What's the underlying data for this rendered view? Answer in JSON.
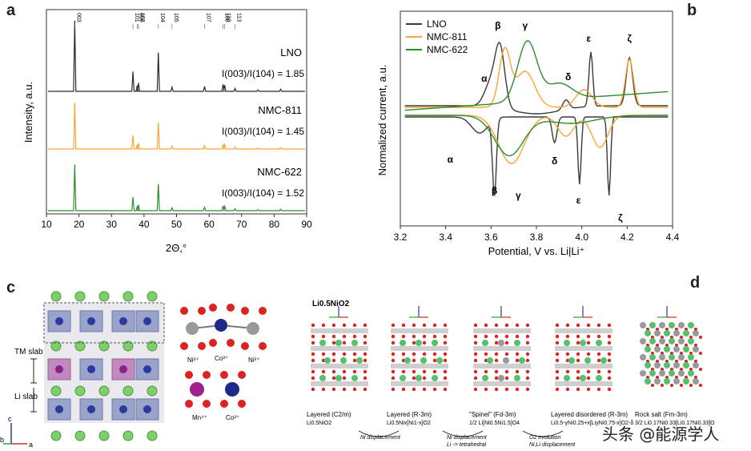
{
  "panels": {
    "a": "a",
    "b": "b",
    "c": "c",
    "d": "d"
  },
  "chart_a": {
    "type": "line",
    "xlabel": "2Θ,°",
    "ylabel": "Intensity, a.u.",
    "xlim": [
      10,
      90
    ],
    "xticks": [
      10,
      20,
      30,
      40,
      50,
      60,
      70,
      80,
      90
    ],
    "hkl": [
      {
        "label": "003",
        "x": 18.7
      },
      {
        "label": "101",
        "x": 36.6
      },
      {
        "label": "006",
        "x": 37.9
      },
      {
        "label": "102",
        "x": 38.3
      },
      {
        "label": "104",
        "x": 44.4
      },
      {
        "label": "105",
        "x": 48.6
      },
      {
        "label": "107",
        "x": 58.6
      },
      {
        "label": "108",
        "x": 64.3
      },
      {
        "label": "110",
        "x": 64.8
      },
      {
        "label": "113",
        "x": 68.0
      }
    ],
    "peaks": [
      {
        "x": 18.7,
        "h": 1.0
      },
      {
        "x": 36.6,
        "h": 0.28
      },
      {
        "x": 37.9,
        "h": 0.08
      },
      {
        "x": 38.3,
        "h": 0.12
      },
      {
        "x": 44.4,
        "h": 0.55
      },
      {
        "x": 48.6,
        "h": 0.06
      },
      {
        "x": 58.6,
        "h": 0.07
      },
      {
        "x": 64.3,
        "h": 0.1
      },
      {
        "x": 64.8,
        "h": 0.09
      },
      {
        "x": 68.0,
        "h": 0.04
      },
      {
        "x": 75.0,
        "h": 0.02
      },
      {
        "x": 82.0,
        "h": 0.03
      }
    ],
    "series": [
      {
        "name": "LNO",
        "ratio_label": "I(003)/I(104) = 1.85",
        "color": "#2b2b2b",
        "scale": 0.9
      },
      {
        "name": "NMC-811",
        "ratio_label": "I(003)/I(104) = 1.45",
        "color": "#f7a634",
        "scale": 0.8
      },
      {
        "name": "NMC-622",
        "ratio_label": "I(003)/I(104) = 1.52",
        "color": "#2e8b2e",
        "scale": 0.8
      }
    ]
  },
  "chart_b": {
    "type": "line",
    "xlabel": "Potential, V vs. Li|Li⁺",
    "ylabel": "Normalized current, a.u.",
    "xlim": [
      3.2,
      4.4
    ],
    "xticks": [
      "3.2",
      "3.4",
      "3.6",
      "3.8",
      "4.0",
      "4.2",
      "4.4"
    ],
    "legend": [
      "LNO",
      "NMC-811",
      "NMC-622"
    ],
    "legend_position": "top-left",
    "colors": {
      "LNO": "#3a3a3a",
      "NMC-811": "#f7a634",
      "NMC-622": "#2e8b2e"
    },
    "peak_labels": [
      "α",
      "β",
      "γ",
      "δ",
      "ε",
      "ζ",
      "α",
      "β",
      "γ",
      "δ",
      "ε",
      "ζ"
    ]
  },
  "panel_c": {
    "labels": [
      "TM slab",
      "Li slab"
    ],
    "ion_labels": [
      "Ni³⁺",
      "Co³⁺",
      "Ni³⁺",
      "Mn⁴⁺",
      "Co³⁺"
    ],
    "axes": [
      "c",
      "b",
      "a"
    ]
  },
  "panel_d": {
    "title": "Li0.5NiO2",
    "structures": [
      {
        "name": "Layered (C2/m)",
        "formula": "Li0.5NiO2"
      },
      {
        "name": "Layered (R-3m)",
        "formula": "Li0.5Nix[Ni1-x]O2"
      },
      {
        "name": "\"Spinel\" (Fd-3m)",
        "formula": "1/2 Li[Ni0.5Ni1.5]O4"
      },
      {
        "name": "Layered disordered (R-3m)",
        "formula": "Li0.5-yNi0.25+x[LiyNi0.75-x]O2-δ"
      },
      {
        "name": "Rock salt (Fm-3m)",
        "formula": "3/2 Li0.17Ni0.33[Li0.17Ni0.33]O"
      }
    ],
    "transitions": [
      "Ni displacement",
      "Ni displacement",
      "Li -> tetrahedral",
      "O2 evolution",
      "Ni,Li displacement"
    ]
  },
  "watermark": "头条 @能源学人"
}
